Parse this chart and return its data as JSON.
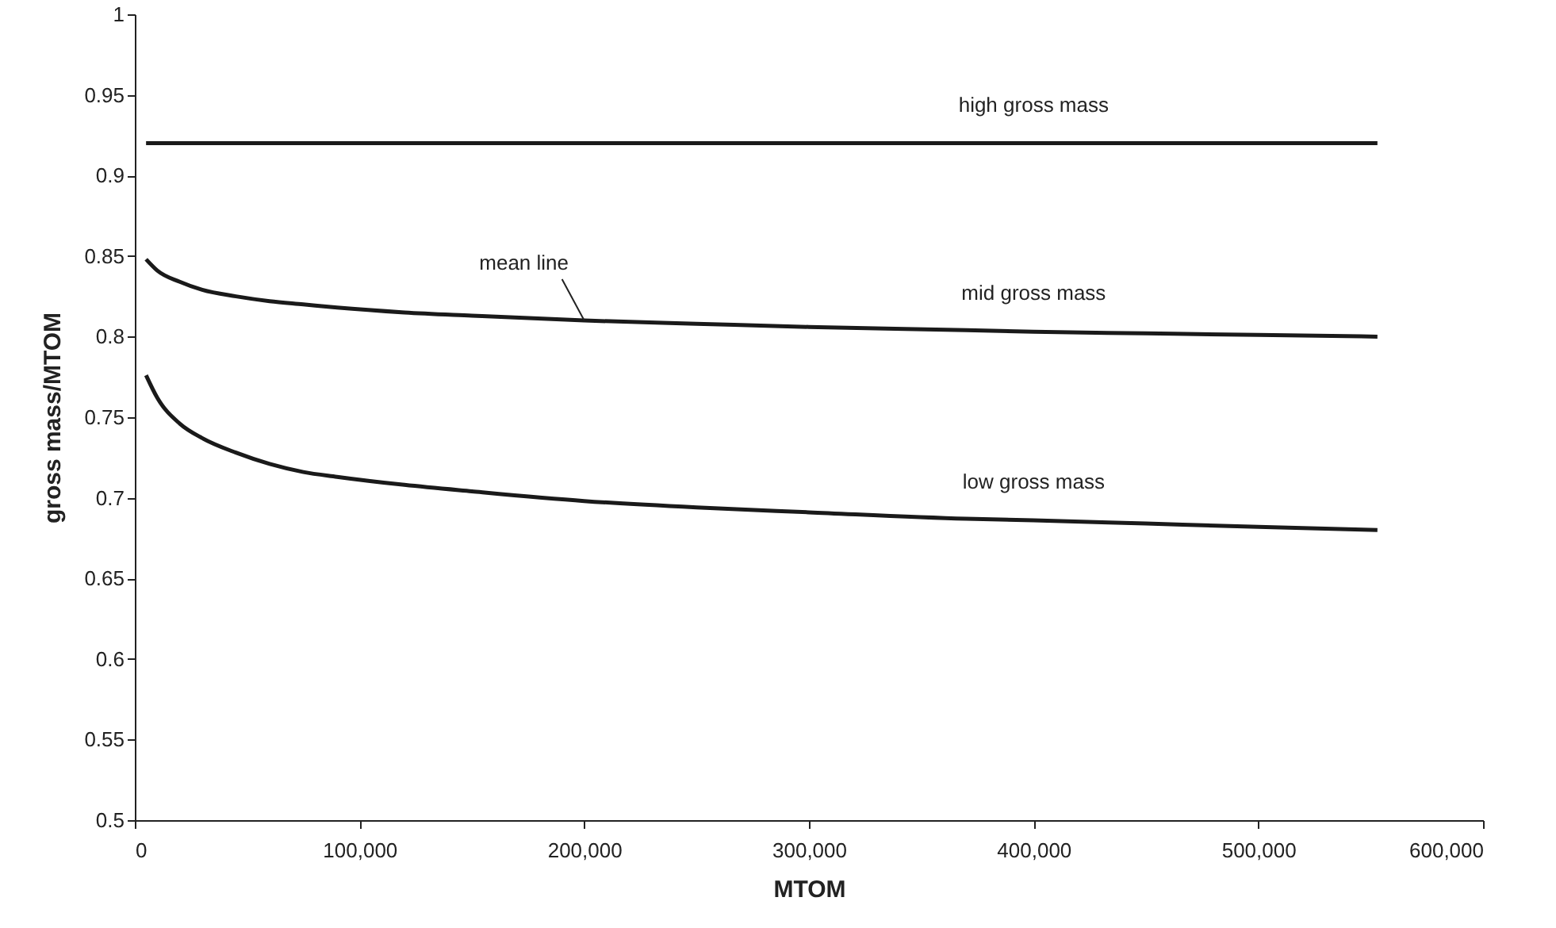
{
  "chart_data": {
    "type": "line",
    "xlabel": "MTOM",
    "ylabel": "gross mass/MTOM",
    "x": [
      5000,
      10000,
      20000,
      30000,
      45000,
      60000,
      75000,
      90000,
      120000,
      150000,
      200000,
      250000,
      300000,
      370000,
      400000,
      450000,
      500000,
      553000
    ],
    "series": [
      {
        "name": "high gross mass",
        "color": "#1a1a1a",
        "values": [
          0.92,
          0.92,
          0.92,
          0.92,
          0.92,
          0.92,
          0.92,
          0.92,
          0.92,
          0.92,
          0.92,
          0.92,
          0.92,
          0.92,
          0.92,
          0.92,
          0.92,
          0.92
        ]
      },
      {
        "name": "mid gross mass",
        "color": "#1a1a1a",
        "values": [
          0.848,
          0.841,
          0.834,
          0.829,
          0.825,
          0.822,
          0.82,
          0.818,
          0.815,
          0.813,
          0.81,
          0.808,
          0.806,
          0.804,
          0.803,
          0.802,
          0.801,
          0.8
        ]
      },
      {
        "name": "low gross mass",
        "color": "#1a1a1a",
        "values": [
          0.776,
          0.762,
          0.746,
          0.737,
          0.728,
          0.721,
          0.716,
          0.713,
          0.708,
          0.704,
          0.698,
          0.694,
          0.691,
          0.687,
          0.686,
          0.684,
          0.682,
          0.68
        ]
      }
    ],
    "annotations": [
      {
        "text": "mean line",
        "x": 200000,
        "y": 0.81
      }
    ],
    "xlim": [
      0,
      600000
    ],
    "xticks": [
      0,
      {
        "value": 100000,
        "label": "100,000"
      },
      {
        "value": 200000,
        "label": "200,000"
      },
      {
        "value": 300000,
        "label": "300,000"
      },
      {
        "value": 400000,
        "label": "400,000"
      },
      {
        "value": 500000,
        "label": "500,000"
      },
      {
        "value": 600000,
        "label": "600,000"
      }
    ],
    "ylim": [
      0.5,
      1
    ],
    "yticks": [
      0.5,
      0.55,
      0.6,
      0.65,
      0.7,
      0.75,
      0.8,
      0.85,
      0.9,
      0.95,
      1
    ],
    "line_style": "solid"
  }
}
